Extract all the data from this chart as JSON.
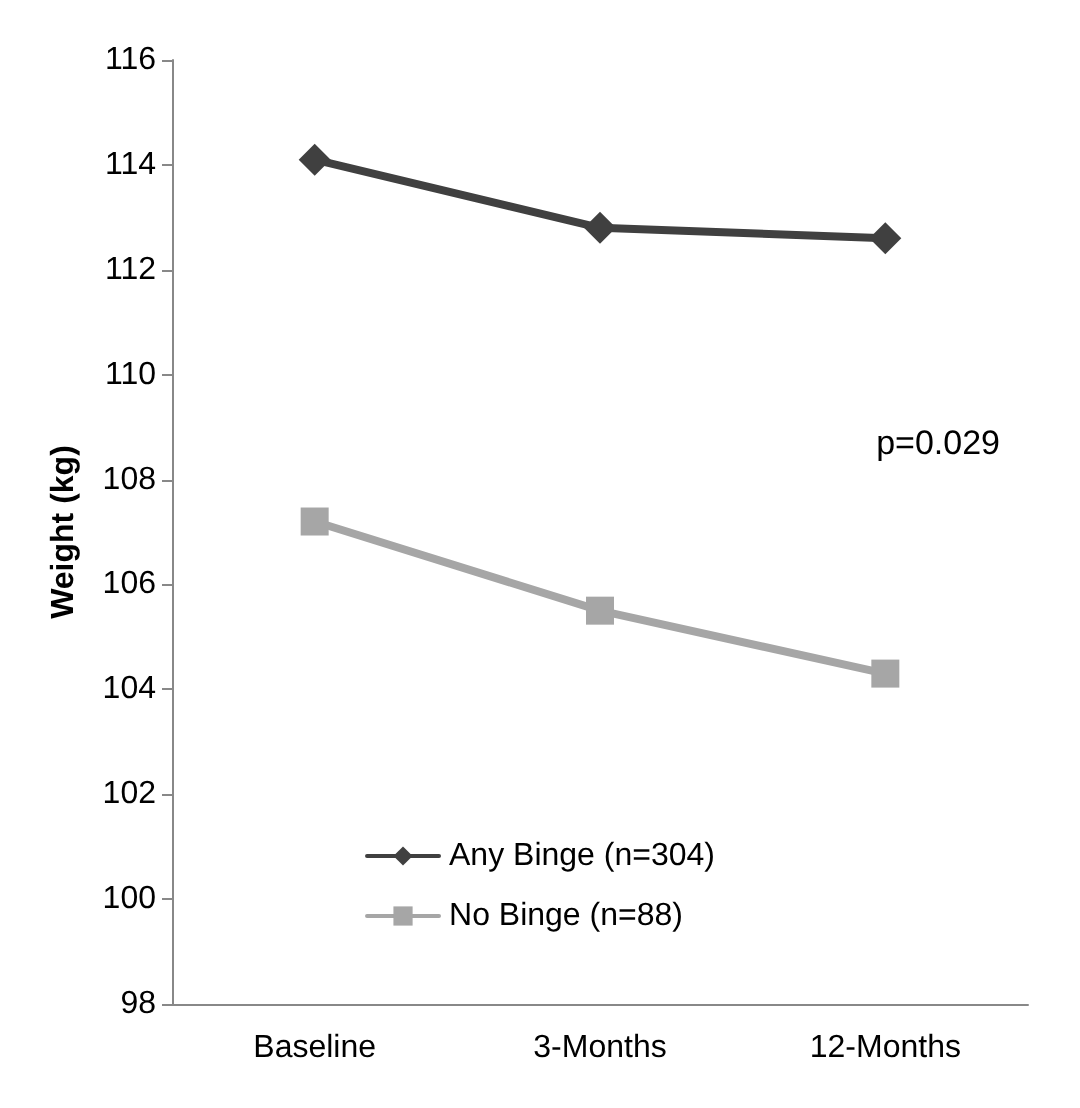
{
  "chart_data": {
    "type": "line",
    "ylabel": "Weight (kg)",
    "categories": [
      "Baseline",
      "3-Months",
      "12-Months"
    ],
    "series": [
      {
        "name": "Any Binge (n=304)",
        "color": "#404040",
        "marker": "diamond",
        "values": [
          114.1,
          112.8,
          112.6
        ]
      },
      {
        "name": "No Binge (n=88)",
        "color": "#a6a6a6",
        "marker": "square",
        "values": [
          107.2,
          105.5,
          104.3
        ]
      }
    ],
    "ylim": [
      98,
      116
    ],
    "yticks": [
      98,
      100,
      102,
      104,
      106,
      108,
      110,
      112,
      114,
      116
    ],
    "annotations": [
      "p=0.029"
    ],
    "grid": false,
    "legend": "bottom",
    "line_style": "solid"
  }
}
